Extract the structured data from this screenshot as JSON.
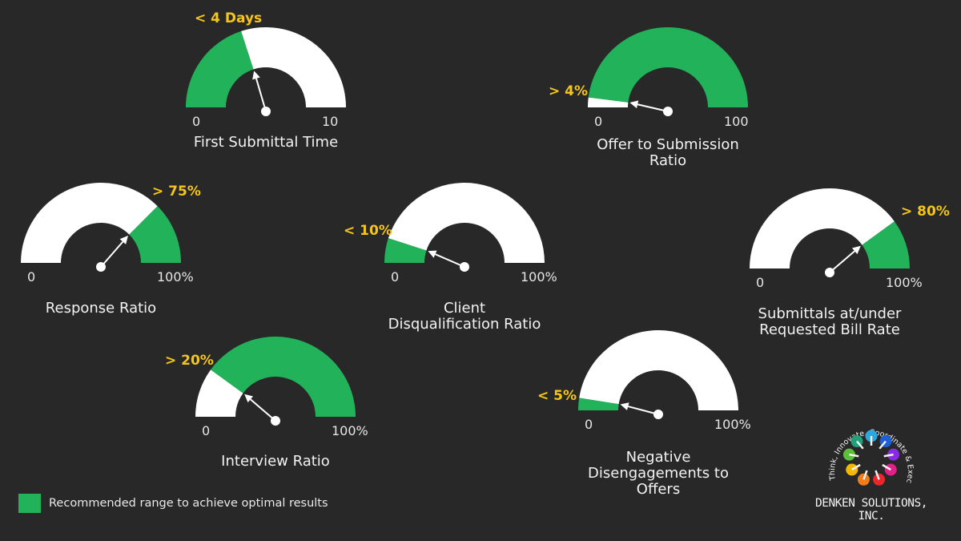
{
  "colors": {
    "background": "#282828",
    "recommended": "#22b35a",
    "track": "#ffffff",
    "threshold_text": "#f5c518"
  },
  "gauges": [
    {
      "title": "First Submittal Time",
      "min_label": "0",
      "max_label": "10",
      "threshold_label": "< 4 Days",
      "green_from": 0,
      "green_to": 0.4,
      "needle": 0.4
    },
    {
      "title": "Offer to Submission\nRatio",
      "min_label": "0",
      "max_label": "100",
      "threshold_label": "> 4%",
      "green_from": 0.04,
      "green_to": 1,
      "needle": 0.04
    },
    {
      "title": "Response Ratio",
      "min_label": "0",
      "max_label": "100%",
      "threshold_label": "> 75%",
      "green_from": 0.75,
      "green_to": 1,
      "needle": 0.75
    },
    {
      "title": "Client\nDisqualification Ratio",
      "min_label": "0",
      "max_label": "100%",
      "threshold_label": "< 10%",
      "green_from": 0,
      "green_to": 0.1,
      "needle": 0.1
    },
    {
      "title": "Submittals at/under\nRequested Bill Rate",
      "min_label": "0",
      "max_label": "100%",
      "threshold_label": "> 80%",
      "green_from": 0.8,
      "green_to": 1,
      "needle": 0.8
    },
    {
      "title": "Interview Ratio",
      "min_label": "0",
      "max_label": "100%",
      "threshold_label": "> 20%",
      "green_from": 0.2,
      "green_to": 1,
      "needle": 0.2
    },
    {
      "title": "Negative\nDisengagements to\nOffers",
      "min_label": "0",
      "max_label": "100%",
      "threshold_label": "< 5%",
      "green_from": 0,
      "green_to": 0.05,
      "needle": 0.05
    }
  ],
  "legend": {
    "label": "Recommended range to achieve optimal results"
  },
  "logo": {
    "tagline": "Think, Innovate, Coordinate & Execute",
    "company": "DENKEN SOLUTIONS, INC.",
    "bulb_colors": [
      "#2aa8e0",
      "#1e5fd6",
      "#8a2be2",
      "#e0218a",
      "#e8262c",
      "#f07d1a",
      "#f5b800",
      "#5bbf3a",
      "#22a07a"
    ]
  }
}
